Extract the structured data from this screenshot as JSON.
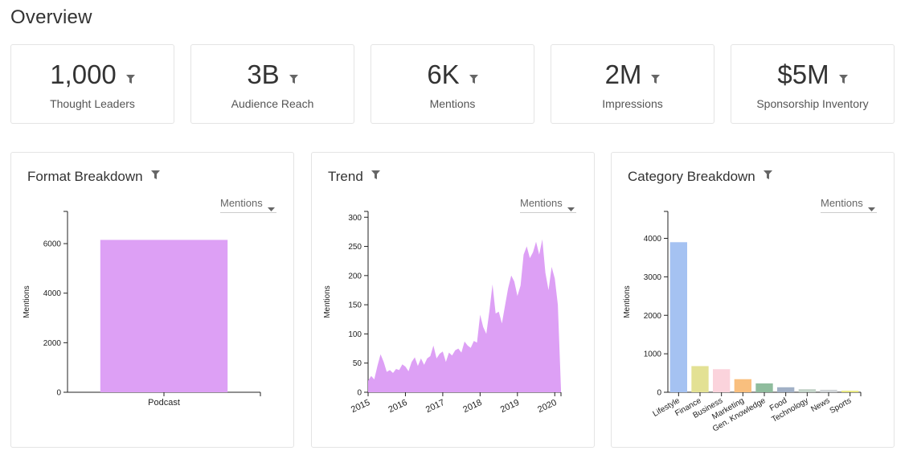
{
  "page": {
    "title": "Overview"
  },
  "stats": [
    {
      "value": "1,000",
      "label": "Thought Leaders"
    },
    {
      "value": "3B",
      "label": "Audience Reach"
    },
    {
      "value": "6K",
      "label": "Mentions"
    },
    {
      "value": "2M",
      "label": "Impressions"
    },
    {
      "value": "$5M",
      "label": "Sponsorship Inventory"
    }
  ],
  "icons": {
    "filter": "filter-funnel-icon",
    "caret": "caret-down-icon"
  },
  "colors": {
    "bar_purple": "#dda0f5",
    "area_purple": "#dda0f5"
  },
  "panels": {
    "format": {
      "title": "Format Breakdown",
      "metric": "Mentions"
    },
    "trend": {
      "title": "Trend",
      "metric": "Mentions"
    },
    "category": {
      "title": "Category Breakdown",
      "metric": "Mentions"
    }
  },
  "chart_data": [
    {
      "type": "bar",
      "title": "Format Breakdown",
      "ylabel": "Mentions",
      "categories": [
        "Podcast"
      ],
      "values": [
        6150
      ],
      "yticks": [
        0,
        2000,
        4000,
        6000
      ],
      "ylim": [
        0,
        7300
      ],
      "colors": [
        "#dda0f5"
      ]
    },
    {
      "type": "area",
      "title": "Trend",
      "ylabel": "Mentions",
      "xticks": [
        "2015",
        "2016",
        "2017",
        "2018",
        "2019",
        "2020"
      ],
      "yticks": [
        0,
        50,
        100,
        150,
        200,
        250,
        300
      ],
      "ylim": [
        0,
        310
      ],
      "x": [
        "2015-01",
        "2015-02",
        "2015-03",
        "2015-04",
        "2015-05",
        "2015-06",
        "2015-07",
        "2015-08",
        "2015-09",
        "2015-10",
        "2015-11",
        "2015-12",
        "2016-01",
        "2016-02",
        "2016-03",
        "2016-04",
        "2016-05",
        "2016-06",
        "2016-07",
        "2016-08",
        "2016-09",
        "2016-10",
        "2016-11",
        "2016-12",
        "2017-01",
        "2017-02",
        "2017-03",
        "2017-04",
        "2017-05",
        "2017-06",
        "2017-07",
        "2017-08",
        "2017-09",
        "2017-10",
        "2017-11",
        "2017-12",
        "2018-01",
        "2018-02",
        "2018-03",
        "2018-04",
        "2018-05",
        "2018-06",
        "2018-07",
        "2018-08",
        "2018-09",
        "2018-10",
        "2018-11",
        "2018-12",
        "2019-01",
        "2019-02",
        "2019-03",
        "2019-04",
        "2019-05",
        "2019-06",
        "2019-07",
        "2019-08",
        "2019-09",
        "2019-10",
        "2019-11",
        "2019-12",
        "2020-01",
        "2020-02",
        "2020-03"
      ],
      "values": [
        20,
        28,
        22,
        45,
        65,
        52,
        35,
        38,
        33,
        40,
        38,
        48,
        44,
        36,
        52,
        60,
        45,
        58,
        47,
        58,
        62,
        80,
        58,
        66,
        70,
        52,
        68,
        63,
        72,
        75,
        68,
        87,
        80,
        76,
        88,
        85,
        133,
        112,
        100,
        140,
        185,
        135,
        138,
        118,
        148,
        178,
        200,
        190,
        165,
        183,
        236,
        250,
        230,
        240,
        258,
        236,
        262,
        205,
        175,
        215,
        195,
        150,
        5
      ],
      "colors": [
        "#dda0f5"
      ]
    },
    {
      "type": "bar",
      "title": "Category Breakdown",
      "ylabel": "Mentions",
      "categories": [
        "Lifestyle",
        "Finance",
        "Business",
        "Marketing",
        "Gen. Knowledge",
        "Food",
        "Technology",
        "News",
        "Sports"
      ],
      "values": [
        3900,
        680,
        600,
        340,
        230,
        130,
        80,
        65,
        40
      ],
      "yticks": [
        0,
        1000,
        2000,
        3000,
        4000
      ],
      "ylim": [
        0,
        4700
      ],
      "colors": [
        "#a5c2f2",
        "#e3e194",
        "#fbd3dc",
        "#f9bf7e",
        "#8fbc9d",
        "#a1b0c6",
        "#c3d3c8",
        "#cfd3d6",
        "#e7e97e"
      ]
    }
  ]
}
